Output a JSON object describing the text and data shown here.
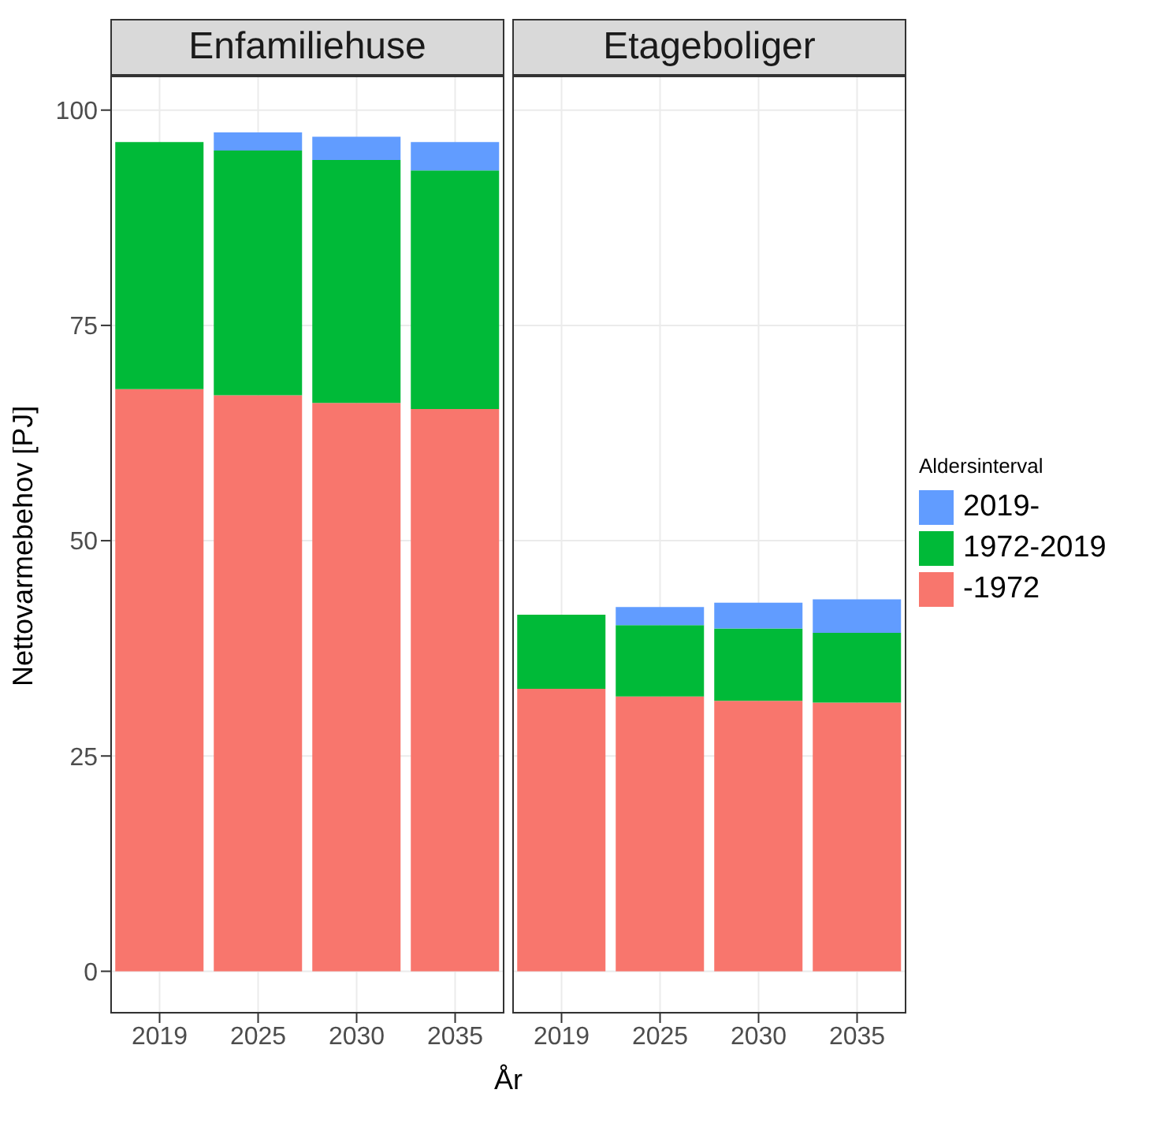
{
  "chart_data": [
    {
      "type": "bar",
      "title": "Enfamiliehuse",
      "xlabel": "År",
      "ylabel": "Nettovarmebehov [PJ]",
      "categories": [
        "2019",
        "2025",
        "2030",
        "2035"
      ],
      "stacked": true,
      "ylim": [
        -4.9,
        104
      ],
      "yticks": [
        0,
        25,
        50,
        75,
        100
      ],
      "grid": true,
      "legend": "right",
      "legend_title": "Aldersinterval",
      "series": [
        {
          "name": "-1972",
          "color": "#f8766d",
          "values": [
            67.6,
            66.9,
            66.0,
            65.3
          ]
        },
        {
          "name": "1972-2019",
          "color": "#00ba38",
          "values": [
            28.7,
            28.4,
            28.2,
            27.7
          ]
        },
        {
          "name": "2019-",
          "color": "#619cff",
          "values": [
            0,
            2.1,
            2.7,
            3.3
          ]
        }
      ]
    },
    {
      "type": "bar",
      "title": "Etageboliger",
      "categories": [
        "2019",
        "2025",
        "2030",
        "2035"
      ],
      "stacked": true,
      "ylim": [
        -4.9,
        104
      ],
      "yticks": [
        0,
        25,
        50,
        75,
        100
      ],
      "grid": true,
      "tick_labels": "x",
      "series": [
        {
          "color": "#f8766d",
          "values": [
            32.8,
            31.9,
            31.4,
            31.2
          ]
        },
        {
          "color": "#00ba38",
          "values": [
            8.6,
            8.3,
            8.4,
            8.1
          ]
        },
        {
          "color": "#619cff",
          "values": [
            0,
            2.1,
            3.0,
            3.9
          ]
        }
      ]
    }
  ]
}
